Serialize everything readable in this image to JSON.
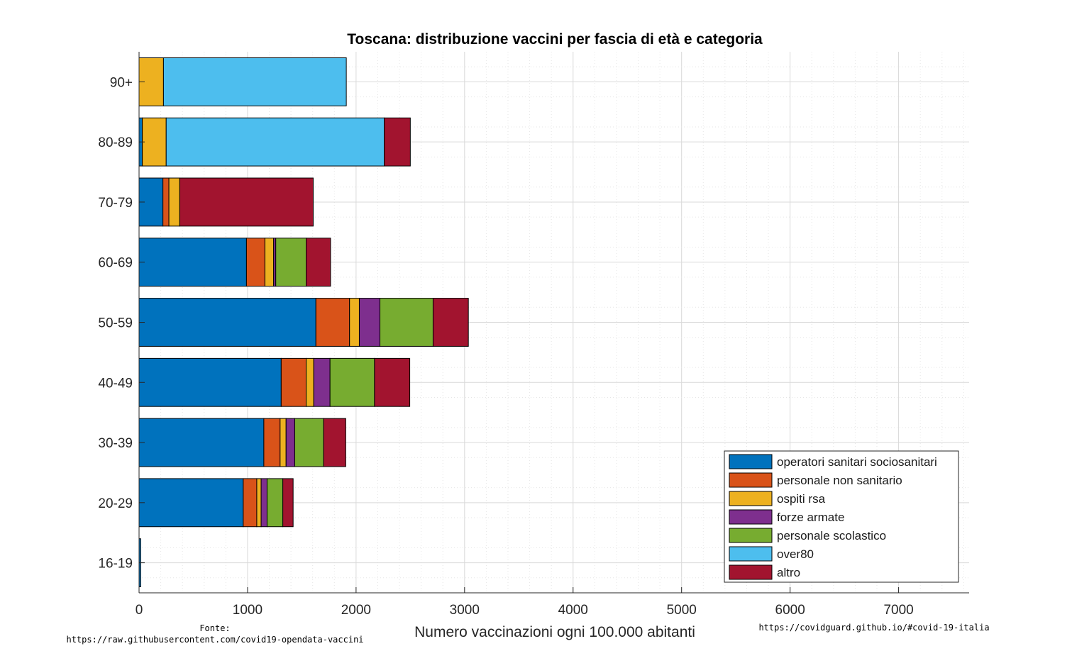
{
  "chart_data": {
    "type": "bar",
    "orientation": "horizontal",
    "stacked": true,
    "title": "Toscana: distribuzione vaccini per fascia di età e categoria",
    "xlabel": "Numero vaccinazioni ogni 100.000 abitanti",
    "ylabel": "",
    "xlim": [
      0,
      7650
    ],
    "xticks": [
      0,
      1000,
      2000,
      3000,
      4000,
      5000,
      6000,
      7000
    ],
    "grid": true,
    "legend_position": "bottom-right",
    "categories": [
      "90+",
      "80-89",
      "70-79",
      "60-69",
      "50-59",
      "40-49",
      "30-39",
      "20-29",
      "16-19"
    ],
    "series": [
      {
        "name": "operatori sanitari sociosanitari",
        "color": "#0072BD",
        "values": [
          0,
          30,
          220,
          990,
          1630,
          1310,
          1150,
          960,
          15
        ]
      },
      {
        "name": "personale non sanitario",
        "color": "#D95319",
        "values": [
          0,
          0,
          55,
          170,
          310,
          230,
          150,
          125,
          0
        ]
      },
      {
        "name": "ospiti rsa",
        "color": "#EDB120",
        "values": [
          225,
          220,
          100,
          80,
          90,
          70,
          55,
          40,
          0
        ]
      },
      {
        "name": "forze armate",
        "color": "#7E2F8E",
        "values": [
          0,
          0,
          0,
          20,
          190,
          150,
          80,
          55,
          0
        ]
      },
      {
        "name": "personale scolastico",
        "color": "#77AC30",
        "values": [
          0,
          0,
          0,
          280,
          490,
          410,
          265,
          145,
          0
        ]
      },
      {
        "name": "over80",
        "color": "#4DBEEE",
        "values": [
          1685,
          2010,
          0,
          0,
          0,
          0,
          0,
          0,
          0
        ]
      },
      {
        "name": "altro",
        "color": "#A2142F",
        "values": [
          0,
          240,
          1230,
          225,
          325,
          325,
          205,
          95,
          0
        ]
      }
    ]
  },
  "footer": {
    "source_label": "Fonte:",
    "source_url": "https://raw.githubusercontent.com/covid19-opendata-vaccini",
    "site_url": "https://covidguard.github.io/#covid-19-italia"
  }
}
